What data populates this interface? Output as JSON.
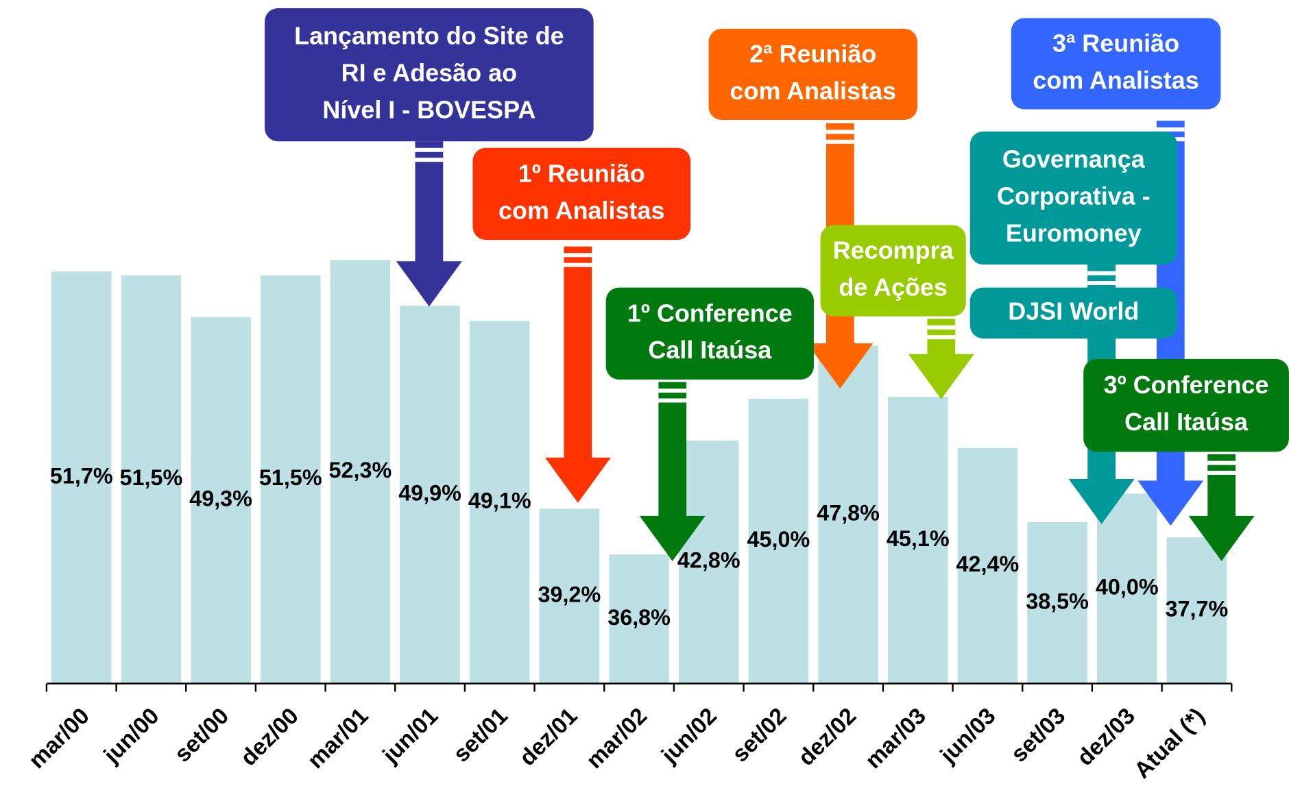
{
  "chart_data": {
    "type": "bar",
    "categories": [
      "mar/00",
      "jun/00",
      "set/00",
      "dez/00",
      "mar/01",
      "jun/01",
      "set/01",
      "dez/01",
      "mar/02",
      "jun/02",
      "set/02",
      "dez/02",
      "mar/03",
      "jun/03",
      "set/03",
      "dez/03",
      "Atual (*)"
    ],
    "values": [
      51.7,
      51.5,
      49.3,
      51.5,
      52.3,
      49.9,
      49.1,
      39.2,
      36.8,
      42.8,
      45.0,
      47.8,
      45.1,
      42.4,
      38.5,
      40.0,
      37.7
    ],
    "value_labels": [
      "51,7%",
      "51,5%",
      "49,3%",
      "51,5%",
      "52,3%",
      "49,9%",
      "49,1%",
      "39,2%",
      "36,8%",
      "42,8%",
      "45,0%",
      "47,8%",
      "45,1%",
      "42,4%",
      "38,5%",
      "40,0%",
      "37,7%"
    ],
    "color": "#bde0e4",
    "ylim": [
      30,
      66
    ],
    "annotations": [
      {
        "lines": [
          "Lançamento do Site de",
          "RI e Adesão ao",
          "Nível I - BOVESPA"
        ],
        "color": "#333399"
      },
      {
        "lines": [
          "1º Reunião",
          "com Analistas"
        ],
        "color": "#ff3300"
      },
      {
        "lines": [
          "1º Conference",
          "Call Itaúsa"
        ],
        "color": "#007a0f"
      },
      {
        "lines": [
          "2ª Reunião",
          "com Analistas"
        ],
        "color": "#ff6600"
      },
      {
        "lines": [
          "Recompra",
          "de Ações"
        ],
        "color": "#99cc00"
      },
      {
        "lines": [
          "3ª Reunião",
          "com Analistas"
        ],
        "color": "#3366ff"
      },
      {
        "lines": [
          "Governança",
          "Corporativa -",
          "Euromoney"
        ],
        "color": "#009999"
      },
      {
        "lines": [
          "DJSI World"
        ],
        "color": "#009999"
      },
      {
        "lines": [
          "3º Conference",
          "Call Itaúsa"
        ],
        "color": "#007a0f"
      }
    ]
  }
}
